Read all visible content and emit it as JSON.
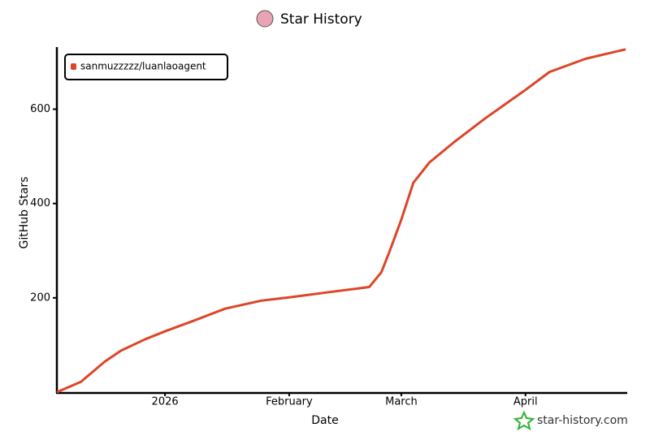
{
  "chart_data": {
    "type": "line",
    "title": "Star History",
    "x_label": "Date",
    "y_label": "GitHub Stars",
    "x": [
      -27,
      -21,
      -15,
      -11,
      -5,
      0,
      7,
      15,
      24,
      31,
      40,
      51,
      54,
      56,
      59,
      62,
      66,
      72,
      80,
      90,
      96,
      105,
      115
    ],
    "series": [
      {
        "name": "sanmuzzzzz/luanlaoagent",
        "color": "#dd4528",
        "values": [
          0,
          22,
          65,
          88,
          112,
          129,
          151,
          177,
          194,
          201,
          211,
          223,
          254,
          297,
          366,
          444,
          487,
          529,
          581,
          641,
          679,
          707,
          727
        ]
      }
    ],
    "xlim": [
      -27,
      115
    ],
    "xticks": [
      {
        "value": 0,
        "label": "2026"
      },
      {
        "value": 31,
        "label": "February"
      },
      {
        "value": 59,
        "label": "March"
      },
      {
        "value": 90,
        "label": "April"
      }
    ],
    "ylim": [
      0,
      730
    ],
    "yticks": [
      200,
      400,
      600
    ],
    "legend": "upper-left",
    "watermark": "star-history.com"
  }
}
